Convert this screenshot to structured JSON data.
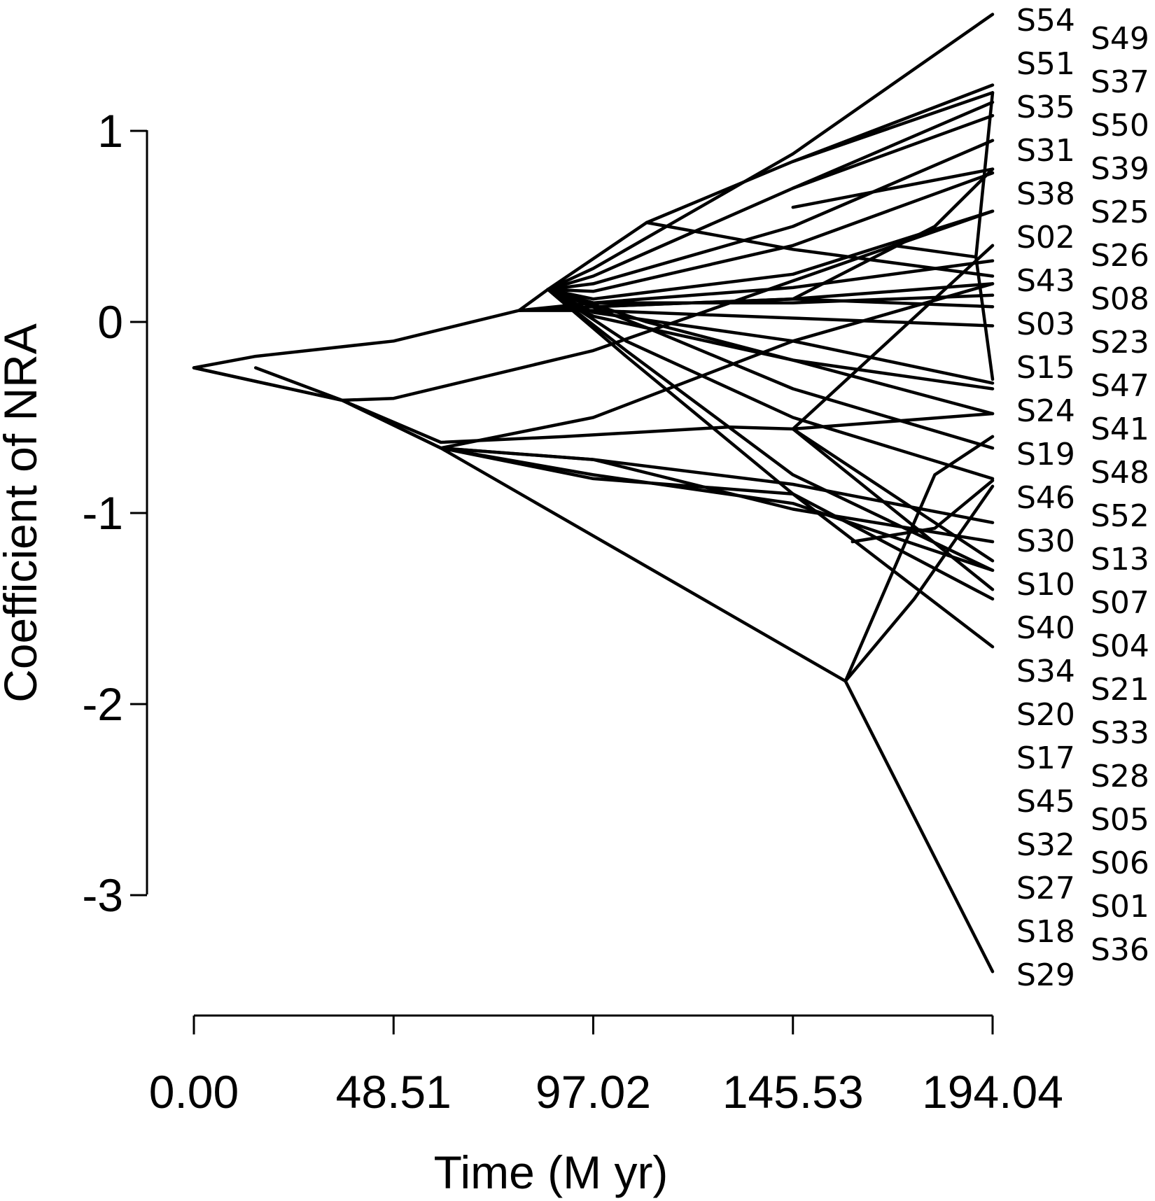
{
  "chart_data": {
    "type": "line",
    "title": "",
    "xlabel": "Time (M yr)",
    "ylabel": "Coefficient of NRA",
    "xlim": [
      0,
      194.04
    ],
    "ylim": [
      -3.3,
      1.5
    ],
    "x_ticks": [
      "0.00",
      "48.51",
      "97.02",
      "145.53",
      "194.04"
    ],
    "x_tick_values": [
      0,
      48.51,
      97.02,
      145.53,
      194.04
    ],
    "y_ticks": [
      "1",
      "0",
      "-1",
      "-2",
      "-3"
    ],
    "y_tick_values": [
      1,
      0,
      -1,
      -2,
      -3
    ],
    "legend": "none",
    "grid": false,
    "tip_labels_col1": [
      "S54",
      "S51",
      "S35",
      "S31",
      "S38",
      "S02",
      "S43",
      "S03",
      "S15",
      "S24",
      "S19",
      "S46",
      "S30",
      "S10",
      "S40",
      "S34",
      "S20",
      "S17",
      "S45",
      "S32",
      "S27",
      "S18",
      "S29"
    ],
    "tip_labels_col2": [
      "S49",
      "S37",
      "S50",
      "S39",
      "S25",
      "S26",
      "S08",
      "S23",
      "S47",
      "S41",
      "S48",
      "S52",
      "S13",
      "S07",
      "S04",
      "S21",
      "S33",
      "S28",
      "S05",
      "S06",
      "S01",
      "S36"
    ],
    "series": [
      {
        "x": [
          0,
          15,
          48.51,
          79,
          86,
          97.02,
          145.53,
          194.04
        ],
        "y": [
          -0.24,
          -0.18,
          -0.1,
          0.06,
          0.17,
          0.28,
          0.88,
          1.61
        ]
      },
      {
        "x": [
          86,
          110,
          145.53,
          194.04
        ],
        "y": [
          0.17,
          0.52,
          0.84,
          1.24
        ]
      },
      {
        "x": [
          145.53,
          194.04
        ],
        "y": [
          0.84,
          1.2
        ]
      },
      {
        "x": [
          86,
          97.02,
          145.53,
          194.04
        ],
        "y": [
          0.17,
          0.24,
          0.7,
          1.15
        ]
      },
      {
        "x": [
          145.53,
          194.04
        ],
        "y": [
          0.7,
          1.08
        ]
      },
      {
        "x": [
          86,
          97.02,
          145.53,
          194.04
        ],
        "y": [
          0.17,
          0.2,
          0.5,
          0.95
        ]
      },
      {
        "x": [
          145.53,
          194.04
        ],
        "y": [
          0.6,
          0.8
        ]
      },
      {
        "x": [
          86,
          97.02,
          145.53,
          194.04
        ],
        "y": [
          0.17,
          0.16,
          0.4,
          0.78
        ]
      },
      {
        "x": [
          110,
          145.53,
          194.04
        ],
        "y": [
          0.52,
          0.38,
          0.24
        ]
      },
      {
        "x": [
          86,
          97.02,
          145.53,
          194.04
        ],
        "y": [
          0.17,
          0.12,
          0.25,
          0.58
        ]
      },
      {
        "x": [
          86,
          97.02,
          145.53,
          194.04
        ],
        "y": [
          0.17,
          0.1,
          0.18,
          0.32
        ]
      },
      {
        "x": [
          86,
          97.02,
          145.53,
          194.04
        ],
        "y": [
          0.17,
          0.08,
          0.12,
          0.2
        ]
      },
      {
        "x": [
          79,
          97.02,
          145.53,
          194.04
        ],
        "y": [
          0.06,
          0.1,
          0.1,
          0.14
        ]
      },
      {
        "x": [
          79,
          97.02,
          145.53,
          194.04
        ],
        "y": [
          0.06,
          0.08,
          0.12,
          0.08
        ]
      },
      {
        "x": [
          79,
          97.02,
          145.53,
          194.04
        ],
        "y": [
          0.06,
          0.06,
          0.02,
          -0.02
        ]
      },
      {
        "x": [
          86,
          97.02,
          145.53,
          194.04
        ],
        "y": [
          0.17,
          0.05,
          -0.1,
          -0.32
        ]
      },
      {
        "x": [
          86,
          97.02,
          145.53,
          194.04
        ],
        "y": [
          0.17,
          0.03,
          -0.2,
          -0.35
        ]
      },
      {
        "x": [
          86,
          110,
          145.53,
          194.04
        ],
        "y": [
          0.17,
          0.0,
          -0.2,
          -0.48
        ]
      },
      {
        "x": [
          86,
          110,
          145.53,
          194.04
        ],
        "y": [
          0.17,
          -0.03,
          -0.35,
          -0.66
        ]
      },
      {
        "x": [
          86,
          105,
          145.53,
          194.04
        ],
        "y": [
          0.17,
          -0.1,
          -0.5,
          -0.82
        ]
      },
      {
        "x": [
          86,
          105,
          145.53,
          194.04
        ],
        "y": [
          0.17,
          -0.15,
          -0.8,
          -1.3
        ]
      },
      {
        "x": [
          86,
          105,
          145.53,
          194.04
        ],
        "y": [
          0.17,
          -0.18,
          -0.9,
          -1.7
        ]
      },
      {
        "x": [
          15,
          36,
          48.51,
          97.02,
          194.04
        ],
        "y": [
          -0.24,
          -0.41,
          -0.4,
          -0.15,
          0.58
        ]
      },
      {
        "x": [
          36,
          60,
          90,
          130,
          145.53,
          194.04
        ],
        "y": [
          -0.41,
          -0.63,
          -0.6,
          -0.55,
          -0.56,
          -0.48
        ]
      },
      {
        "x": [
          145.53,
          194.04
        ],
        "y": [
          -0.56,
          -1.4
        ]
      },
      {
        "x": [
          145.53,
          194.04
        ],
        "y": [
          -0.56,
          -1.25
        ]
      },
      {
        "x": [
          0,
          36,
          60,
          97.02,
          145.53,
          194.04
        ],
        "y": [
          -0.24,
          -0.41,
          -0.66,
          -0.72,
          -0.85,
          -1.05
        ]
      },
      {
        "x": [
          60,
          97.02,
          145.53,
          194.04
        ],
        "y": [
          -0.66,
          -0.5,
          -0.1,
          0.2
        ]
      },
      {
        "x": [
          60,
          97.02,
          145.53,
          194.04
        ],
        "y": [
          -0.66,
          -0.8,
          -0.95,
          -1.3
        ]
      },
      {
        "x": [
          60,
          97.02,
          145.53,
          194.04
        ],
        "y": [
          -0.66,
          -0.82,
          -0.9,
          -1.45
        ]
      },
      {
        "x": [
          60,
          97.02,
          145.53,
          194.04
        ],
        "y": [
          -0.66,
          -0.72,
          -0.98,
          -1.15
        ]
      },
      {
        "x": [
          160,
          180,
          194.04
        ],
        "y": [
          -1.15,
          -1.08,
          -0.83
        ]
      },
      {
        "x": [
          0,
          36,
          60,
          158.3,
          194.04
        ],
        "y": [
          -0.24,
          -0.41,
          -0.66,
          -1.88,
          -3.4
        ]
      },
      {
        "x": [
          158.3,
          175,
          194.04
        ],
        "y": [
          -1.88,
          -1.45,
          -0.86
        ]
      },
      {
        "x": [
          158.3,
          180,
          194.04
        ],
        "y": [
          -1.88,
          -0.8,
          -0.6
        ]
      },
      {
        "x": [
          145.53,
          194.04
        ],
        "y": [
          -0.56,
          0.4
        ]
      },
      {
        "x": [
          145.53,
          180,
          194.04
        ],
        "y": [
          0.12,
          0.5,
          0.8
        ]
      },
      {
        "x": [
          170,
          190,
          194.04
        ],
        "y": [
          0.4,
          0.34,
          1.2
        ]
      },
      {
        "x": [
          190,
          194.04
        ],
        "y": [
          0.34,
          -0.3
        ]
      }
    ]
  }
}
